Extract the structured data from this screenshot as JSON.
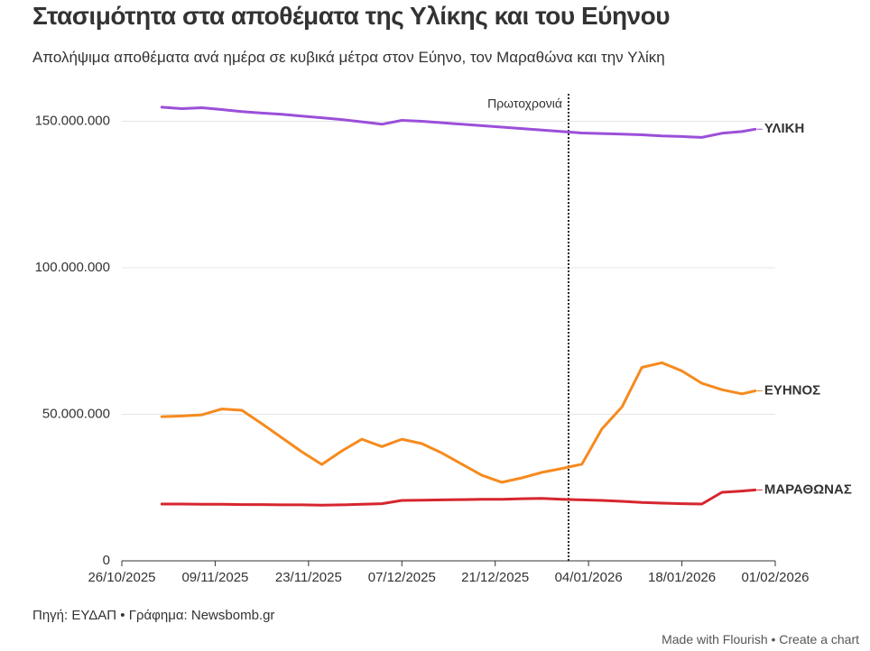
{
  "chart_data": {
    "type": "line",
    "title": "Στασιμότητα στα αποθέματα της Υλίκης και του Εύηνου",
    "subtitle": "Απολήψιμα αποθέματα ανά ημέρα σε κυβικά μέτρα στον Εύηνο, τον Μαραθώνα και την Υλίκη",
    "source": "Πηγή: ΕΥΔΑΠ • Γράφημα: Newsbomb.gr",
    "footer": "Made with Flourish • Create a chart",
    "annotation": {
      "x": "01/01/2026",
      "label": "Πρωτοχρονιά"
    },
    "x": [
      "01/11/2025",
      "04/11/2025",
      "07/11/2025",
      "10/11/2025",
      "13/11/2025",
      "16/11/2025",
      "19/11/2025",
      "22/11/2025",
      "25/11/2025",
      "28/11/2025",
      "01/12/2025",
      "04/12/2025",
      "07/12/2025",
      "10/12/2025",
      "13/12/2025",
      "16/12/2025",
      "19/12/2025",
      "22/12/2025",
      "25/12/2025",
      "28/12/2025",
      "31/12/2025",
      "03/01/2026",
      "06/01/2026",
      "09/01/2026",
      "12/01/2026",
      "15/01/2026",
      "18/01/2026",
      "21/01/2026",
      "24/01/2026",
      "27/01/2026",
      "29/01/2026"
    ],
    "xlim": [
      "26/10/2025",
      "01/02/2026"
    ],
    "xticks": [
      "26/10/2025",
      "09/11/2025",
      "23/11/2025",
      "07/12/2025",
      "21/12/2025",
      "04/01/2026",
      "18/01/2026",
      "01/02/2026"
    ],
    "ylim": [
      0,
      160000000
    ],
    "yticks": [
      0,
      {
        "value": 50000000,
        "label": "50.000.000"
      },
      {
        "value": 100000000,
        "label": "100.000.000"
      },
      {
        "value": 150000000,
        "label": "150.000.000"
      }
    ],
    "grid": true,
    "series": [
      {
        "name": "ΥΛΙΚΗ",
        "color": "#9b4fd9",
        "values": [
          154800000,
          154300000,
          154600000,
          154000000,
          153300000,
          152800000,
          152400000,
          151800000,
          151200000,
          150600000,
          149800000,
          149000000,
          150300000,
          150000000,
          149500000,
          149000000,
          148500000,
          148000000,
          147500000,
          147000000,
          146500000,
          146000000,
          145800000,
          145600000,
          145400000,
          145000000,
          144800000,
          144500000,
          145900000,
          146500000,
          147300000
        ]
      },
      {
        "name": "ΕΥΗΝΟΣ",
        "color": "#f68a1e",
        "values": [
          49200000,
          49400000,
          49800000,
          51800000,
          51400000,
          46800000,
          42000000,
          37200000,
          32900000,
          37500000,
          41500000,
          39000000,
          41500000,
          40000000,
          36800000,
          33000000,
          29200000,
          26800000,
          28300000,
          30200000,
          31500000,
          33000000,
          45000000,
          52500000,
          66000000,
          67600000,
          64800000,
          60600000,
          58400000,
          57000000,
          58000000
        ]
      },
      {
        "name": "ΜΑΡΑΘΩΝΑΣ",
        "color": "#d6262f",
        "values": [
          19400000,
          19400000,
          19300000,
          19300000,
          19200000,
          19200000,
          19100000,
          19100000,
          19000000,
          19100000,
          19300000,
          19500000,
          20600000,
          20700000,
          20800000,
          20900000,
          21000000,
          21000000,
          21200000,
          21300000,
          21000000,
          20800000,
          20600000,
          20300000,
          19900000,
          19700000,
          19500000,
          19400000,
          23400000,
          23800000,
          24200000
        ]
      }
    ]
  }
}
